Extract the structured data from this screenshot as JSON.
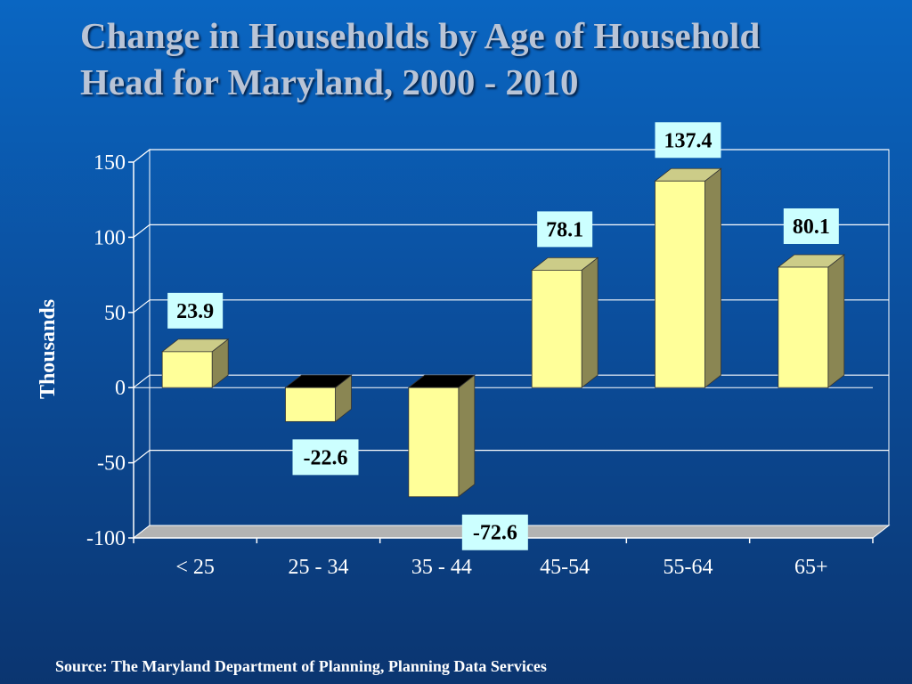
{
  "title": {
    "line1": "Change in Households by Age of Household",
    "line2": "Head for Maryland, 2000 - 2010"
  },
  "source": "Source: The Maryland Department of Planning, Planning Data Services",
  "colors": {
    "bar_front": "#ffff99",
    "bar_side": "#8a8653",
    "bar_top": "#cccc88",
    "bar_top_negative": "#000000",
    "label_box": "#ccffff",
    "grid": "#ffffff",
    "floor": "#b3b3b3"
  },
  "chart_data": {
    "type": "bar",
    "categories": [
      "< 25",
      "25 - 34",
      "35 - 44",
      "45-54",
      "55-64",
      "65+"
    ],
    "values": [
      23.9,
      -22.6,
      -72.6,
      78.1,
      137.4,
      80.1
    ],
    "value_labels": [
      "23.9",
      "-22.6",
      "-72.6",
      "78.1",
      "137.4",
      "80.1"
    ],
    "ylabel": "Thousands",
    "ylim": [
      -100,
      150
    ],
    "yticks": [
      150,
      100,
      50,
      0,
      -50,
      -100
    ],
    "ytick_labels": [
      "150",
      "100",
      "50",
      "0",
      "-50",
      "-100"
    ],
    "grid": true,
    "style": "3d"
  }
}
